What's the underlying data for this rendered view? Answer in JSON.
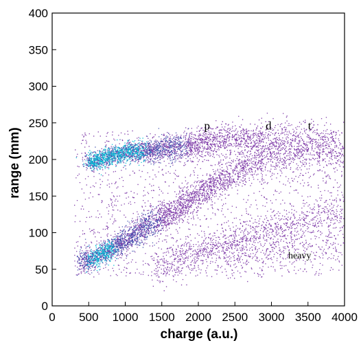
{
  "chart_data": {
    "type": "heatmap",
    "xlabel": "charge (a.u.)",
    "ylabel": "range (mm)",
    "xlim": [
      0,
      4000
    ],
    "ylim": [
      0,
      400
    ],
    "x_ticks": [
      0,
      500,
      1000,
      1500,
      2000,
      2500,
      3000,
      3500,
      4000
    ],
    "y_ticks": [
      0,
      50,
      100,
      150,
      200,
      250,
      300,
      350,
      400
    ],
    "grid": false,
    "legend": "none",
    "colors": {
      "sparse": "#6a1b9a",
      "medium": "#3949ab",
      "dense": "#00bcd4"
    },
    "bands": [
      {
        "label": "p",
        "label_x": 2080,
        "label_y": 241,
        "points": [
          [
            480,
            196
          ],
          [
            700,
            202
          ],
          [
            900,
            208
          ],
          [
            1100,
            211
          ],
          [
            1400,
            214
          ],
          [
            1700,
            218
          ],
          [
            2100,
            224
          ],
          [
            2500,
            227
          ],
          [
            2900,
            229
          ],
          [
            3300,
            228
          ],
          [
            3700,
            226
          ],
          [
            4000,
            222
          ]
        ],
        "intensity": [
          1.0,
          1.0,
          0.95,
          0.9,
          0.8,
          0.6,
          0.45,
          0.35,
          0.28,
          0.22,
          0.18,
          0.14
        ]
      },
      {
        "label": "d",
        "label_x": 2920,
        "label_y": 241,
        "points": [
          [
            380,
            62
          ],
          [
            550,
            64
          ],
          [
            700,
            72
          ],
          [
            900,
            85
          ],
          [
            1100,
            96
          ],
          [
            1300,
            110
          ],
          [
            1600,
            126
          ],
          [
            1900,
            146
          ],
          [
            2200,
            165
          ],
          [
            2500,
            182
          ],
          [
            2800,
            196
          ],
          [
            3100,
            206
          ],
          [
            3500,
            211
          ],
          [
            4000,
            204
          ]
        ],
        "intensity": [
          0.7,
          0.9,
          0.95,
          0.8,
          0.7,
          0.6,
          0.5,
          0.45,
          0.4,
          0.35,
          0.3,
          0.25,
          0.2,
          0.15
        ]
      },
      {
        "label": "t",
        "label_x": 3500,
        "label_y": 241,
        "points": [
          [
            1400,
            48
          ],
          [
            1800,
            65
          ],
          [
            2200,
            80
          ],
          [
            2600,
            92
          ],
          [
            3000,
            104
          ],
          [
            3400,
            115
          ],
          [
            3800,
            127
          ],
          [
            4000,
            133
          ]
        ],
        "intensity": [
          0.2,
          0.25,
          0.25,
          0.22,
          0.2,
          0.18,
          0.16,
          0.14
        ]
      },
      {
        "label": "heavy",
        "label_x": 3230,
        "label_y": 65,
        "points": [
          [
            2400,
            60
          ],
          [
            3000,
            70
          ],
          [
            3600,
            86
          ],
          [
            4000,
            96
          ]
        ],
        "intensity": [
          0.08,
          0.1,
          0.1,
          0.08
        ]
      }
    ]
  }
}
